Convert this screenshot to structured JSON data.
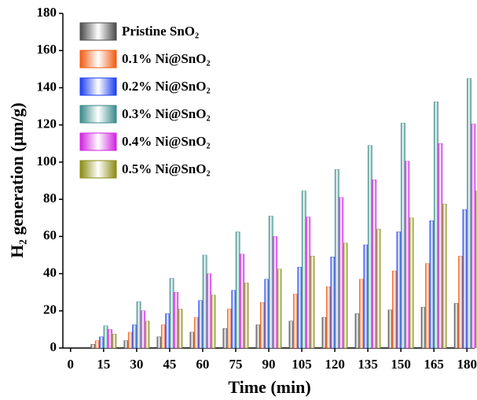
{
  "chart_data": {
    "type": "bar",
    "x_label": "Time (min)",
    "y_label": "H₂ generation (μm/g)",
    "x": [
      15,
      30,
      45,
      60,
      75,
      90,
      105,
      120,
      135,
      150,
      165,
      180
    ],
    "series": [
      {
        "name": "Pristine SnO₂",
        "color": "#4a4a4a",
        "values": [
          2,
          4,
          6,
          8.5,
          10.5,
          12.5,
          14.5,
          16.5,
          18.5,
          20.5,
          22,
          24
        ]
      },
      {
        "name": "0.1% Ni@SnO₂",
        "color": "#f05a10",
        "values": [
          4,
          8.5,
          12.5,
          16.5,
          21,
          24.5,
          29,
          33,
          37,
          41.5,
          45.5,
          49.5
        ]
      },
      {
        "name": "0.2% Ni@SnO₂",
        "color": "#1a3cf0",
        "values": [
          6,
          12.5,
          18.5,
          25.5,
          31,
          37,
          43.5,
          49,
          55.5,
          62.5,
          68.5,
          74.5
        ]
      },
      {
        "name": "0.3% Ni@SnO₂",
        "color": "#3a8a8a",
        "values": [
          12,
          25,
          37.5,
          50,
          62.5,
          71,
          84.5,
          96,
          109,
          121,
          132.5,
          145
        ]
      },
      {
        "name": "0.4% Ni@SnO₂",
        "color": "#d020e0",
        "values": [
          10,
          20,
          30,
          40,
          50.5,
          60,
          70.5,
          81,
          90.5,
          100.5,
          110,
          120.5
        ]
      },
      {
        "name": "0.5% Ni@SnO₂",
        "color": "#8a8a10",
        "values": [
          7.5,
          14.5,
          21,
          28.5,
          35,
          42.5,
          49.5,
          56.5,
          64,
          70,
          77.5,
          84.5
        ]
      }
    ],
    "xlim": [
      -3.5,
      183.5
    ],
    "xticks": [
      0,
      15,
      30,
      45,
      60,
      75,
      90,
      105,
      120,
      135,
      150,
      165,
      180
    ],
    "ylim": [
      0,
      180
    ],
    "yticks": [
      0,
      20,
      40,
      60,
      80,
      100,
      120,
      140,
      160,
      180
    ],
    "legend": "upper left"
  }
}
